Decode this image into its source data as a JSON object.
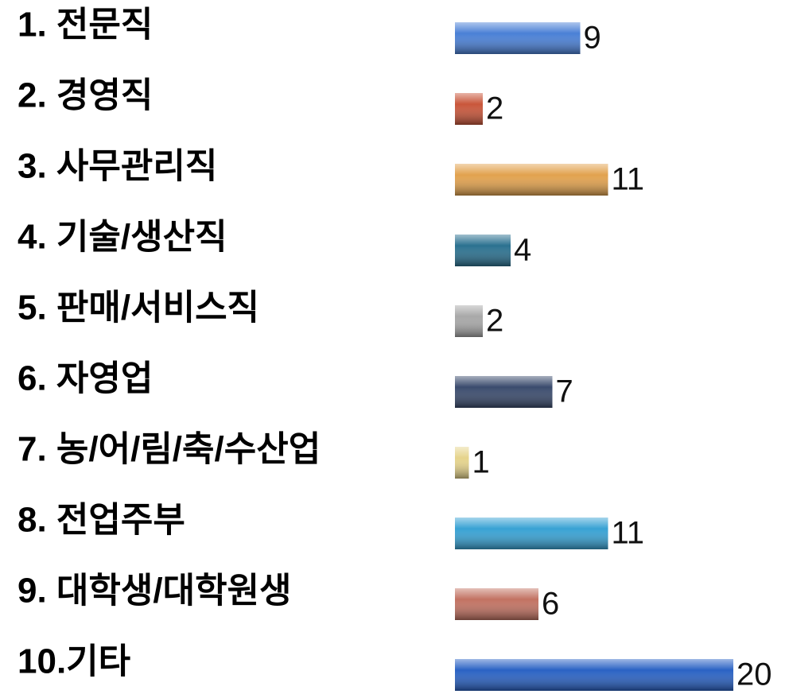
{
  "chart_data": {
    "type": "bar",
    "orientation": "horizontal",
    "categories": [
      "1. 전문직",
      "2. 경영직",
      "3. 사무관리직",
      "4. 기술/생산직",
      "5. 판매/서비스직",
      "6. 자영업",
      "7. 농/어/림/축/수산업",
      "8. 전업주부",
      "9. 대학생/대학원생",
      "10.기타"
    ],
    "values": [
      9,
      2,
      11,
      4,
      2,
      7,
      1,
      11,
      6,
      20
    ],
    "colors": [
      "#4a80d6",
      "#c9563a",
      "#e2a24e",
      "#2b7190",
      "#a8a8a8",
      "#3a4b6d",
      "#e6d48c",
      "#38a2d4",
      "#c27262",
      "#2a62c4"
    ]
  }
}
